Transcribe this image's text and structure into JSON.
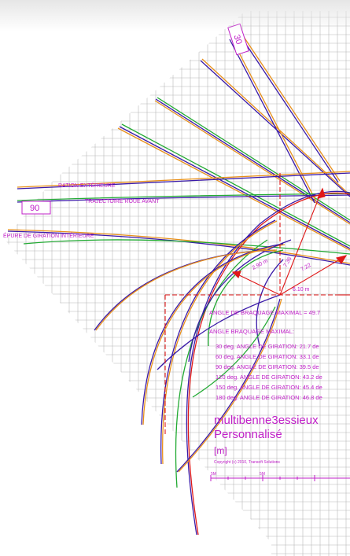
{
  "colors": {
    "background": "#ffffff",
    "grid": "#b8b8b8",
    "magenta": "#c020c8",
    "red": "#e01818",
    "green": "#22aa33",
    "blue": "#3a1aa8",
    "orange": "#e8901a"
  },
  "labels": {
    "rot_30": "30",
    "rot_90": "90",
    "giration_exterieure": "RATION EXTÉRIEURE",
    "trajectoire_roue_avant": "TRAJECTOIRE ROUE AVANT",
    "epure_giration_interieure": "ÉPURE DE GIRATION INTÉRIEURE",
    "dim_2_90": "2.90 m",
    "dim_7_36": "7.36",
    "dim_7_22": "7.22",
    "dim_6_10": "6.10 m"
  },
  "info": {
    "angle_braquage_maximal_value": "ANGLE DE BRAQUAGE MAXIMAL = 49.7",
    "angle_braquage_maximal_heading": "ANGLE BRAQUAGE MAXIMAL:",
    "rows": [
      "30 deg. ANGLE DE GIRATION: 21.7 de",
      "60 deg. ANGLE DE GIRATION: 33.1 de",
      "90 deg. ANGLE DE GIRATION: 39.5 de",
      "120 deg. ANGLE DE GIRATION: 43.2 de",
      "150 deg. ANGLE DE GIRATION: 45.4 de",
      "180 deg. ANGLE DE GIRATION: 46.8 de"
    ],
    "vehicle_name": "multibenne3essieux",
    "vehicle_type": "Personnalisé",
    "unit": "[m]",
    "copyright": "Copyright (c) 2010, Transoft Solutions",
    "scale_left": "5M",
    "scale_right": "5M"
  }
}
